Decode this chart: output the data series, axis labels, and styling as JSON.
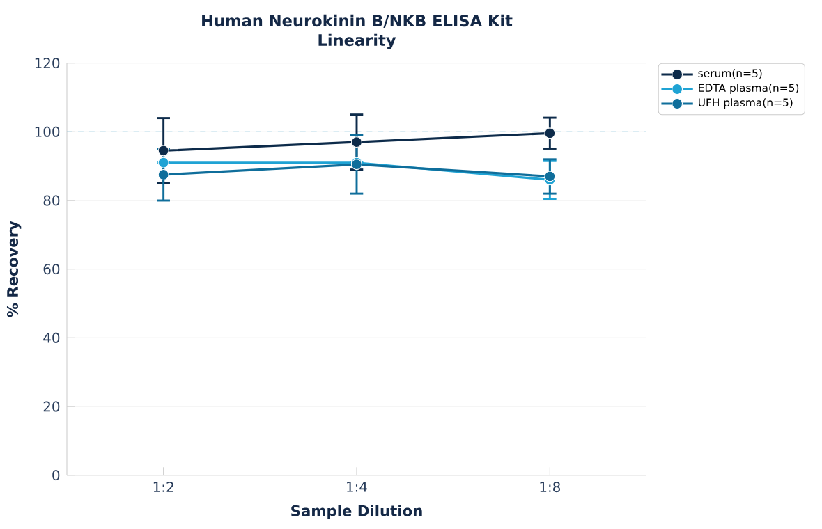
{
  "chart_data": {
    "type": "line",
    "title": "Human Neurokinin B/NKB ELISA Kit",
    "subtitle": "Linearity",
    "xlabel": "Sample Dilution",
    "ylabel": "% Recovery",
    "categories": [
      "1:2",
      "1:4",
      "1:8"
    ],
    "series": [
      {
        "name": "serum(n=5)",
        "color": "#0d2b4a",
        "values": [
          94.5,
          97.0,
          99.6
        ],
        "errors": [
          9.5,
          8,
          4.5
        ]
      },
      {
        "name": "EDTA plasma(n=5)",
        "color": "#1fa3d4",
        "values": [
          91.0,
          91.0,
          86.0
        ],
        "errors": [
          null,
          null,
          5.5
        ]
      },
      {
        "name": "UFH plasma(n=5)",
        "color": "#0f6e9b",
        "values": [
          87.5,
          90.5,
          87.0
        ],
        "errors": [
          7.5,
          8.5,
          5
        ]
      }
    ],
    "ylim": [
      0,
      120
    ],
    "yticks": [
      0,
      20,
      40,
      60,
      80,
      100,
      120
    ],
    "ref_lines": [
      {
        "axis": "y",
        "value": 100,
        "color": "#7fc4de",
        "line_style": "dashed"
      }
    ],
    "grid": "y",
    "legend": "top right",
    "marker": "circle",
    "line_style": "solid"
  }
}
